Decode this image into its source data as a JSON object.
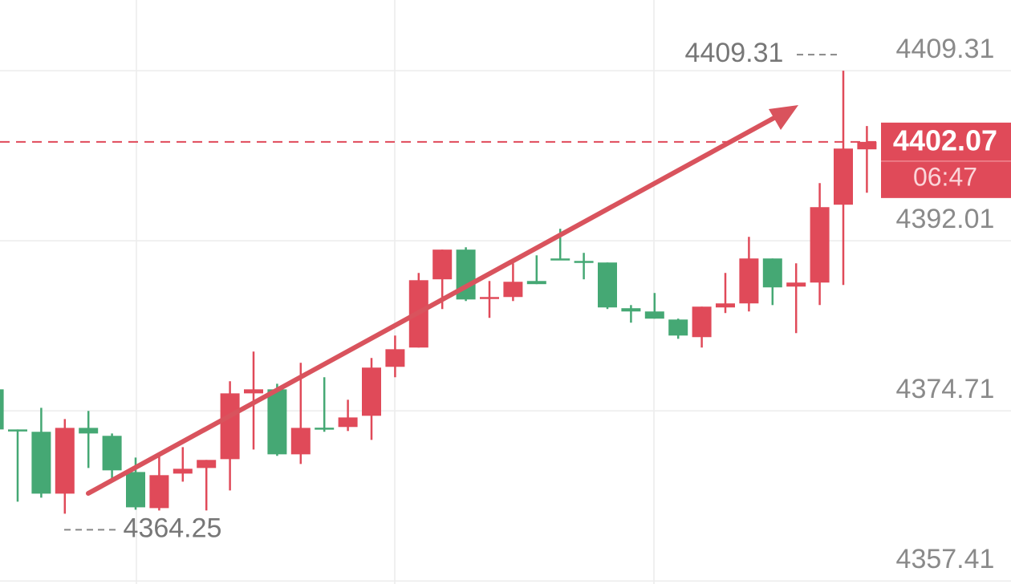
{
  "chart_data": {
    "type": "candlestick",
    "up_color": "#e04a59",
    "down_color": "#45a874",
    "ylim": [
      4357.1,
      4416.5
    ],
    "yticks": [
      4409.31,
      4392.01,
      4374.71,
      4357.41
    ],
    "grid": true,
    "max_price": 4409.31,
    "min_price": 4364.25,
    "last_price": 4402.07,
    "countdown": "06:47",
    "open": [
      4376.9,
      4372.82,
      4372.58,
      4366.29,
      4372.98,
      4372.17,
      4368.49,
      4364.82,
      4368.33,
      4368.9,
      4369.8,
      4376.49,
      4376.9,
      4370.29,
      4373.0,
      4373.07,
      4374.21,
      4379.19,
      4381.15,
      4388.09,
      4391.11,
      4386.13,
      4386.29,
      4387.92,
      4390.21,
      4389.96,
      4389.8,
      4385.15,
      4384.82,
      4384.0,
      4382.21,
      4385.23,
      4385.64,
      4390.21,
      4387.35,
      4387.76,
      4395.68,
      4401.31
    ],
    "high": [
      4376.9,
      4372.82,
      4375.02,
      4373.88,
      4374.7,
      4372.41,
      4369.96,
      4370.13,
      4371.02,
      4369.72,
      4377.72,
      4380.74,
      4377.47,
      4379.6,
      4378.13,
      4375.84,
      4380.09,
      4382.37,
      4388.74,
      4391.11,
      4391.35,
      4387.92,
      4389.72,
      4390.53,
      4393.23,
      4390.78,
      4389.8,
      4385.47,
      4386.7,
      4384.09,
      4385.31,
      4388.74,
      4392.41,
      4390.21,
      4389.72,
      4397.88,
      4409.31,
      4403.68
    ],
    "low": [
      4372.82,
      4365.47,
      4365.88,
      4364.25,
      4368.9,
      4367.76,
      4364.66,
      4364.58,
      4367.51,
      4364.58,
      4366.62,
      4370.78,
      4370.13,
      4369.31,
      4372.58,
      4372.66,
      4371.76,
      4378.13,
      4381.15,
      4385.07,
      4385.88,
      4384.17,
      4385.88,
      4387.6,
      4390.04,
      4388.09,
      4385.07,
      4383.68,
      4384.09,
      4382.04,
      4381.15,
      4384.66,
      4384.82,
      4385.47,
      4382.62,
      4385.47,
      4387.51,
      4396.9
    ],
    "close": [
      4372.82,
      4372.66,
      4366.29,
      4372.98,
      4372.41,
      4368.66,
      4364.9,
      4368.17,
      4368.82,
      4369.72,
      4376.49,
      4376.9,
      4370.29,
      4372.98,
      4372.82,
      4374.04,
      4379.11,
      4380.98,
      4388.0,
      4391.11,
      4386.04,
      4386.29,
      4387.84,
      4387.6,
      4390.04,
      4389.8,
      4385.23,
      4384.82,
      4384.09,
      4382.37,
      4385.31,
      4385.64,
      4390.21,
      4387.27,
      4387.76,
      4395.43,
      4401.39,
      4402.07
    ]
  }
}
